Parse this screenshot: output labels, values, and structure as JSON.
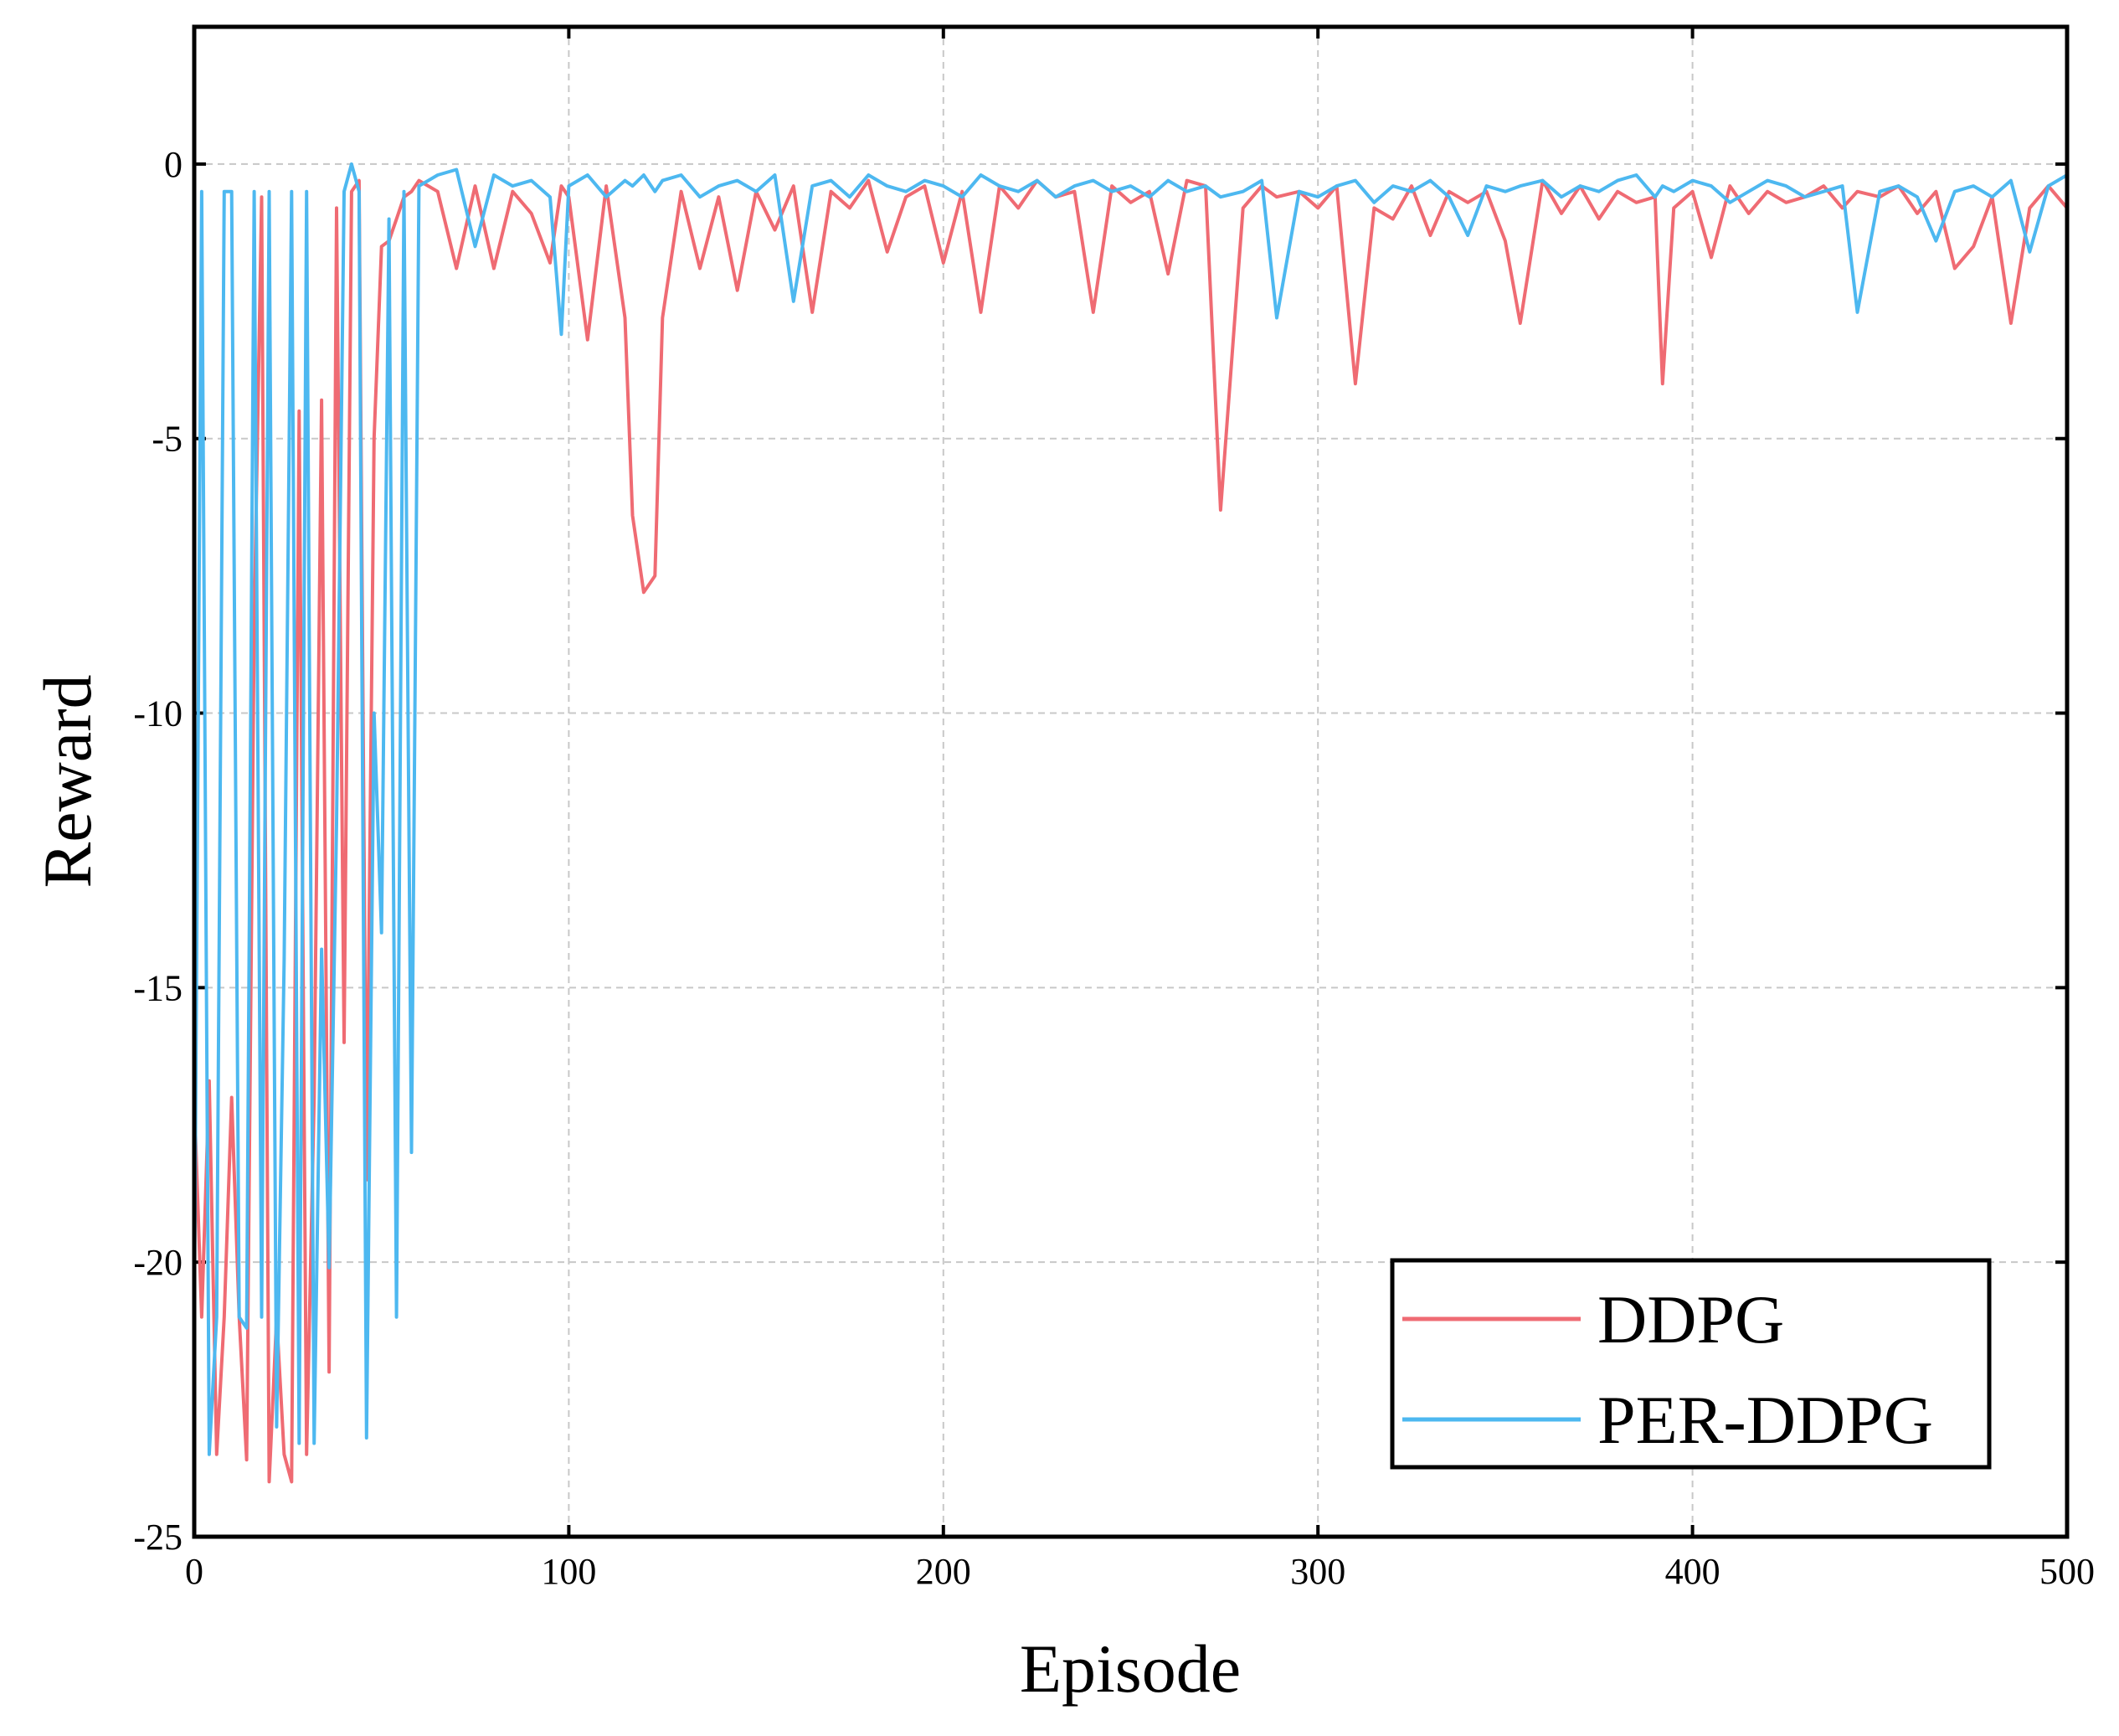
{
  "chart_data": {
    "type": "line",
    "x_label": "Episode",
    "y_label": "Reward",
    "xlim": [
      0,
      500
    ],
    "ylim": [
      -25,
      2.5
    ],
    "xticks": [
      0,
      100,
      200,
      300,
      400,
      500
    ],
    "yticks": [
      -25,
      -20,
      -15,
      -10,
      -5,
      0
    ],
    "grid": true,
    "legend": "lower right",
    "x": [
      0,
      2,
      4,
      6,
      8,
      10,
      12,
      14,
      16,
      18,
      20,
      22,
      24,
      26,
      28,
      30,
      32,
      34,
      36,
      38,
      40,
      42,
      44,
      46,
      48,
      50,
      52,
      54,
      56,
      58,
      60,
      65,
      70,
      75,
      80,
      85,
      90,
      95,
      98,
      100,
      105,
      110,
      115,
      117,
      120,
      123,
      125,
      130,
      135,
      140,
      145,
      150,
      155,
      160,
      165,
      170,
      175,
      180,
      185,
      190,
      195,
      200,
      205,
      210,
      215,
      220,
      225,
      230,
      235,
      240,
      245,
      250,
      255,
      260,
      265,
      270,
      274,
      280,
      285,
      289,
      295,
      300,
      305,
      310,
      315,
      320,
      325,
      330,
      335,
      340,
      345,
      350,
      354,
      360,
      365,
      370,
      375,
      380,
      385,
      390,
      392,
      395,
      400,
      405,
      410,
      415,
      420,
      425,
      430,
      435,
      440,
      444,
      450,
      455,
      460,
      465,
      470,
      475,
      480,
      485,
      490,
      495,
      500
    ],
    "series": [
      {
        "name": "DDPG",
        "color": "#ef6b73",
        "values": [
          -17,
          -21,
          -16.7,
          -23.5,
          -21,
          -17,
          -21,
          -23.6,
          -8.4,
          -0.6,
          -24,
          -21,
          -23.5,
          -24,
          -4.5,
          -23.5,
          -17,
          -4.3,
          -22,
          -0.8,
          -16,
          -0.5,
          -0.3,
          -18.5,
          -5,
          -1.5,
          -1.4,
          -1,
          -0.6,
          -0.5,
          -0.3,
          -0.5,
          -1.9,
          -0.4,
          -1.9,
          -0.5,
          -0.9,
          -1.8,
          -0.4,
          -0.6,
          -3.2,
          -0.4,
          -2.8,
          -6.4,
          -7.8,
          -7.5,
          -2.8,
          -0.5,
          -1.9,
          -0.6,
          -2.3,
          -0.5,
          -1.2,
          -0.4,
          -2.7,
          -0.5,
          -0.8,
          -0.3,
          -1.6,
          -0.6,
          -0.4,
          -1.8,
          -0.5,
          -2.7,
          -0.4,
          -0.8,
          -0.3,
          -0.6,
          -0.5,
          -2.7,
          -0.4,
          -0.7,
          -0.5,
          -2.0,
          -0.3,
          -0.4,
          -6.3,
          -0.8,
          -0.4,
          -0.6,
          -0.5,
          -0.8,
          -0.4,
          -4.0,
          -0.8,
          -1.0,
          -0.4,
          -1.3,
          -0.5,
          -0.7,
          -0.5,
          -1.4,
          -2.9,
          -0.3,
          -0.9,
          -0.4,
          -1.0,
          -0.5,
          -0.7,
          -0.6,
          -4.0,
          -0.8,
          -0.5,
          -1.7,
          -0.4,
          -0.9,
          -0.5,
          -0.7,
          -0.6,
          -0.4,
          -0.8,
          -0.5,
          -0.6,
          -0.4,
          -0.9,
          -0.5,
          -1.9,
          -1.5,
          -0.6,
          -2.9,
          -0.8,
          -0.4,
          -0.8
        ]
      },
      {
        "name": "PER-DDPG",
        "color": "#4db8f0",
        "values": [
          -21.2,
          -0.5,
          -23.5,
          -21,
          -0.5,
          -0.5,
          -21,
          -21.2,
          -0.5,
          -21,
          -0.5,
          -23,
          -14.5,
          -0.5,
          -23.3,
          -0.5,
          -23.3,
          -14.3,
          -20.1,
          -12,
          -0.5,
          0,
          -0.5,
          -23.2,
          -10,
          -14,
          -1,
          -21,
          -0.5,
          -18,
          -0.4,
          -0.2,
          -0.1,
          -1.5,
          -0.2,
          -0.4,
          -0.3,
          -0.6,
          -3.1,
          -0.4,
          -0.2,
          -0.6,
          -0.3,
          -0.4,
          -0.2,
          -0.5,
          -0.3,
          -0.2,
          -0.6,
          -0.4,
          -0.3,
          -0.5,
          -0.2,
          -2.5,
          -0.4,
          -0.3,
          -0.6,
          -0.2,
          -0.4,
          -0.5,
          -0.3,
          -0.4,
          -0.6,
          -0.2,
          -0.4,
          -0.5,
          -0.3,
          -0.6,
          -0.4,
          -0.3,
          -0.5,
          -0.4,
          -0.6,
          -0.3,
          -0.5,
          -0.4,
          -0.6,
          -0.5,
          -0.3,
          -2.8,
          -0.5,
          -0.6,
          -0.4,
          -0.3,
          -0.7,
          -0.4,
          -0.5,
          -0.3,
          -0.6,
          -1.3,
          -0.4,
          -0.5,
          -0.4,
          -0.3,
          -0.6,
          -0.4,
          -0.5,
          -0.3,
          -0.2,
          -0.6,
          -0.4,
          -0.5,
          -0.3,
          -0.4,
          -0.7,
          -0.5,
          -0.3,
          -0.4,
          -0.6,
          -0.5,
          -0.4,
          -2.7,
          -0.5,
          -0.4,
          -0.6,
          -1.4,
          -0.5,
          -0.4,
          -0.6,
          -0.3,
          -1.6,
          -0.4,
          -0.2
        ]
      }
    ]
  }
}
